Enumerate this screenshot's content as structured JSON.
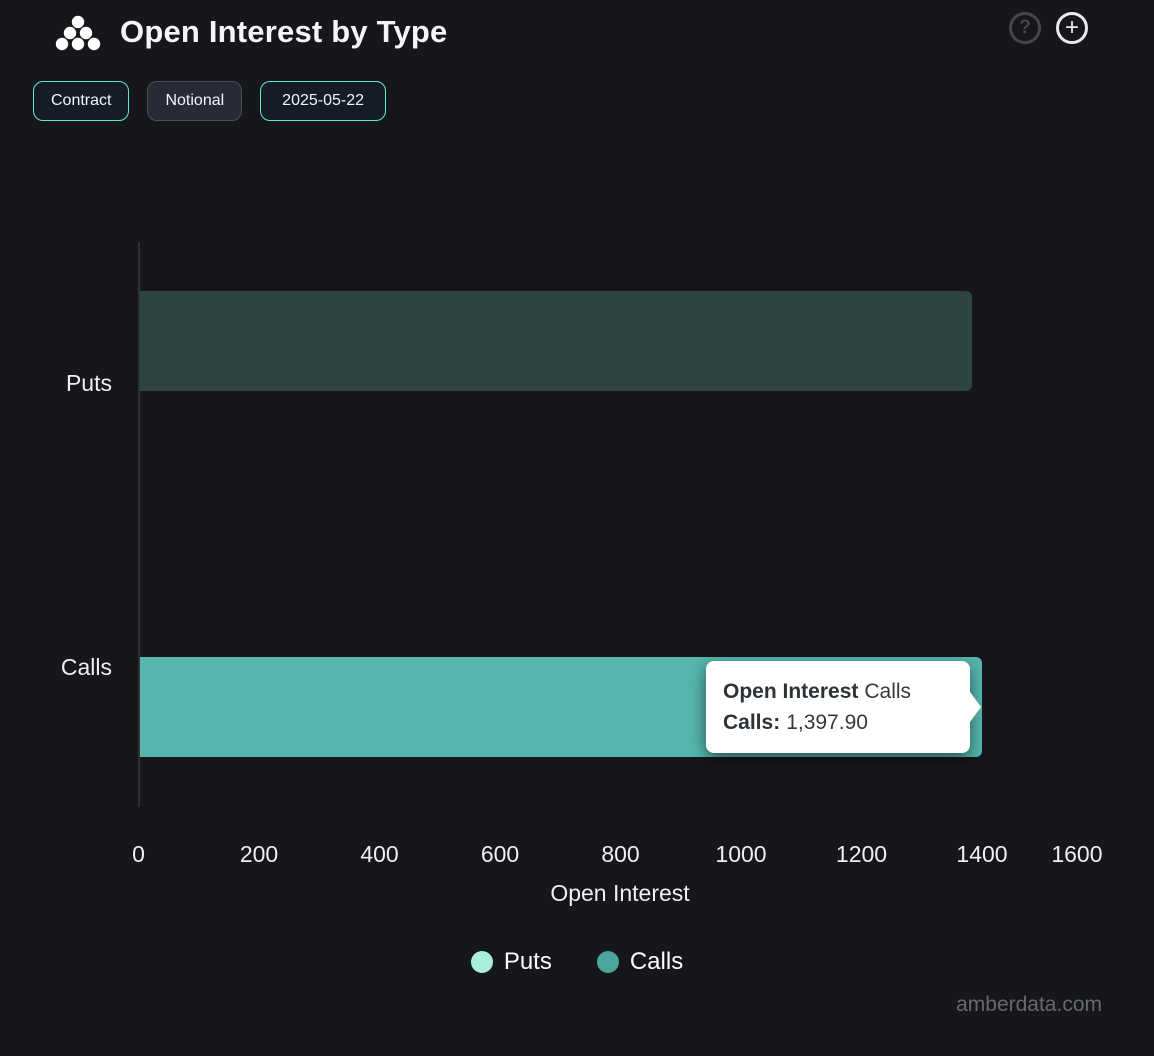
{
  "header": {
    "title": "Open Interest by Type",
    "help_glyph": "?",
    "add_glyph": "+"
  },
  "toolbar": {
    "buttons": [
      {
        "label": "Contract",
        "active": true
      },
      {
        "label": "Notional",
        "active": false
      },
      {
        "label": "2025-05-22",
        "active": true
      }
    ]
  },
  "chart_data": {
    "type": "bar",
    "orientation": "horizontal",
    "title": "Open Interest by Type",
    "categories": [
      "Puts",
      "Calls"
    ],
    "series": [
      {
        "name": "Puts",
        "category": "Puts",
        "value": 1381,
        "legend_color": "#a8f0d9",
        "bar_color_rendered": "#2f4440",
        "state": "dimmed"
      },
      {
        "name": "Calls",
        "category": "Calls",
        "value": 1397.9,
        "legend_color": "#4aa69d",
        "bar_color_rendered": "#56b6ae",
        "state": "hovered"
      }
    ],
    "xlabel": "Open Interest",
    "xlim": [
      0,
      1600
    ],
    "xticks": [
      0,
      200,
      400,
      600,
      800,
      1000,
      1200,
      1400,
      1600
    ],
    "legend": [
      {
        "label": "Puts",
        "color": "#a8f0d9"
      },
      {
        "label": "Calls",
        "color": "#4aa69d"
      }
    ],
    "legend_position": "bottom",
    "grid": "off"
  },
  "tooltip": {
    "series_label_bold": "Open Interest",
    "series_label_rest": "Calls",
    "row_label_bold": "Calls:",
    "row_value": "1,397.90"
  },
  "watermark": "amberdata.com"
}
